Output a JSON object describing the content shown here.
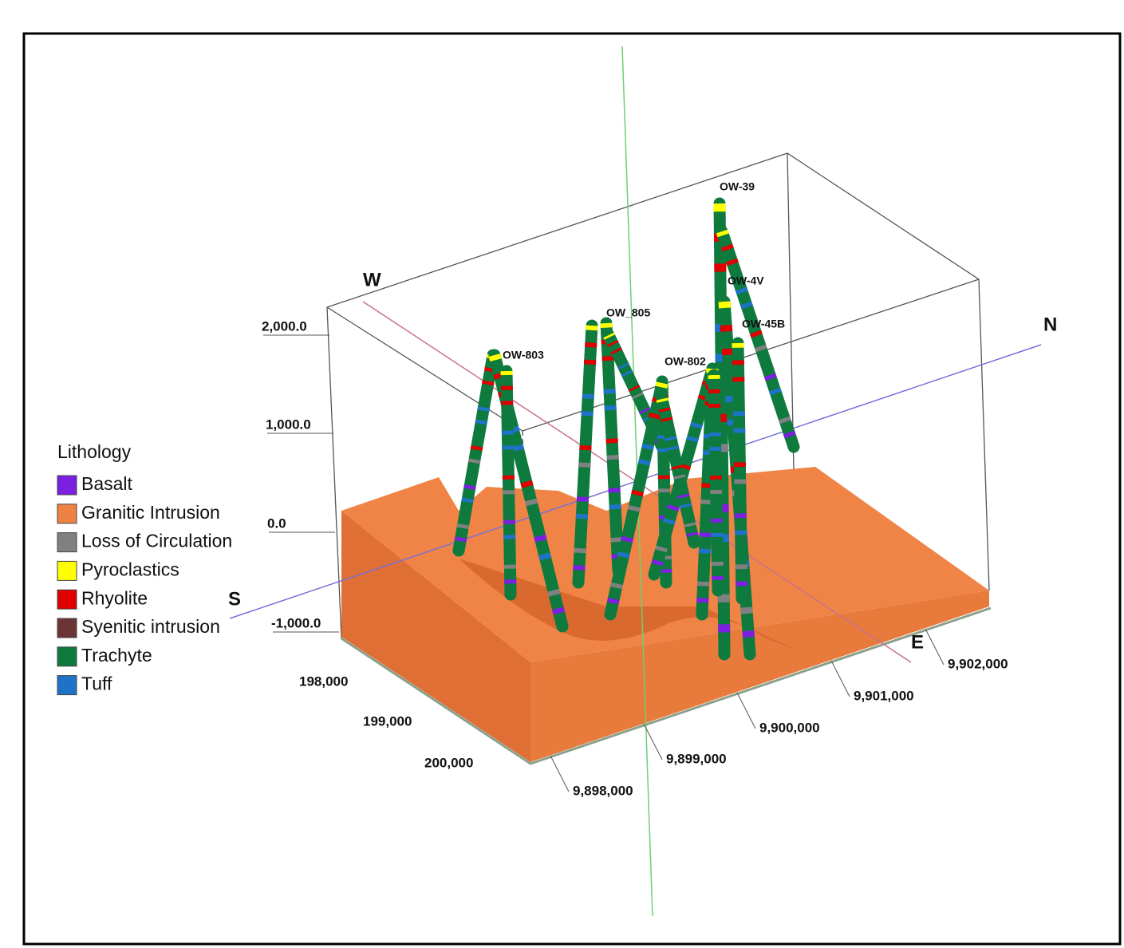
{
  "legend": {
    "title": "Lithology",
    "items": [
      {
        "label": "Basalt",
        "color": "#7b1fe0"
      },
      {
        "label": "Granitic Intrusion",
        "color": "#ee8244"
      },
      {
        "label": "Loss of Circulation",
        "color": "#808080"
      },
      {
        "label": "Pyroclastics",
        "color": "#ffff00"
      },
      {
        "label": "Rhyolite",
        "color": "#e00000"
      },
      {
        "label": "Syenitic intrusion",
        "color": "#6b3535"
      },
      {
        "label": "Trachyte",
        "color": "#0e7a3e"
      },
      {
        "label": "Tuff",
        "color": "#1e73c8"
      }
    ]
  },
  "elevation_labels": [
    "2,000.0",
    "1,000.0",
    "0.0",
    "-1,000.0"
  ],
  "easting_labels": [
    "198,000",
    "199,000",
    "200,000"
  ],
  "northing_labels": [
    "9,898,000",
    "9,899,000",
    "9,900,000",
    "9,901,000",
    "9,902,000"
  ],
  "compass": {
    "west": "W",
    "north": "N",
    "south": "S",
    "east": "E"
  },
  "wells": [
    "OW-39",
    "OW-4V",
    "OW_805",
    "OW-45B",
    "OW-803",
    "OW-802"
  ]
}
